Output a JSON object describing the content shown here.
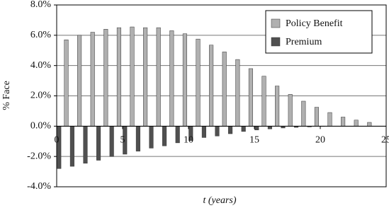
{
  "chart_data": {
    "type": "bar",
    "x": [
      1,
      2,
      3,
      4,
      5,
      6,
      7,
      8,
      9,
      10,
      11,
      12,
      13,
      14,
      15,
      16,
      17,
      18,
      19,
      20,
      21,
      22,
      23,
      24
    ],
    "series": [
      {
        "name": "Policy Benefit",
        "color": "#b0b0b0",
        "values": [
          5.7,
          6.0,
          6.2,
          6.4,
          6.5,
          6.55,
          6.5,
          6.5,
          6.3,
          6.1,
          5.75,
          5.35,
          4.9,
          4.4,
          3.8,
          3.3,
          2.65,
          2.1,
          1.65,
          1.25,
          0.9,
          0.6,
          0.4,
          0.25
        ]
      },
      {
        "name": "Premium",
        "color": "#505050",
        "values": [
          -2.8,
          -2.65,
          -2.45,
          -2.25,
          -2.0,
          -1.85,
          -1.65,
          -1.45,
          -1.3,
          -1.1,
          -0.95,
          -0.75,
          -0.65,
          -0.5,
          -0.35,
          -0.25,
          -0.18,
          -0.12,
          -0.08,
          -0.05,
          -0.02,
          null,
          null,
          null
        ]
      }
    ],
    "xlim": [
      0,
      25
    ],
    "xticks": [
      0,
      5,
      10,
      15,
      20,
      25
    ],
    "ylim": [
      -4,
      8
    ],
    "yticks": [
      {
        "value": -4,
        "label": "-4.0%"
      },
      {
        "value": -2,
        "label": "-2.0%"
      },
      {
        "value": 0,
        "label": "0.0%"
      },
      {
        "value": 2,
        "label": "2.0%"
      },
      {
        "value": 4,
        "label": "4.0%"
      },
      {
        "value": 6,
        "label": "6.0%"
      },
      {
        "value": 8,
        "label": "8.0%"
      }
    ],
    "xlabel": "t (years)",
    "ylabel": "% Face",
    "grid": true,
    "legend": "top-right"
  }
}
